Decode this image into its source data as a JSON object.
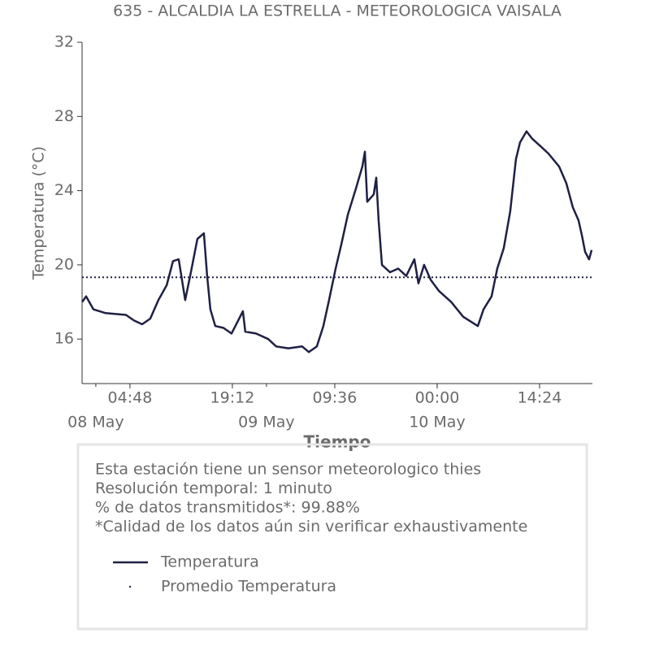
{
  "chart_data": {
    "type": "line",
    "title": "635 - ALCALDIA LA ESTRELLA - METEOROLOGICA VAISALA",
    "xlabel": "Tiempo",
    "ylabel": "Temperatura (°C)",
    "x": [
      "07 May 22:05",
      "07 May 22:38",
      "07 May 23:40",
      "08 May 01:22",
      "08 May 04:14",
      "08 May 05:22",
      "08 May 06:31",
      "08 May 07:39",
      "08 May 08:48",
      "08 May 09:58",
      "08 May 10:51",
      "08 May 11:39",
      "08 May 12:34",
      "08 May 13:22",
      "08 May 14:17",
      "08 May 15:12",
      "08 May 15:39",
      "08 May 16:07",
      "08 May 16:48",
      "08 May 17:57",
      "08 May 19:05",
      "08 May 20:41",
      "08 May 21:01",
      "08 May 22:31",
      "09 May 00:14",
      "09 May 01:22",
      "09 May 03:05",
      "09 May 05:01",
      "09 May 05:57",
      "09 May 07:05",
      "09 May 08:00",
      "09 May 08:48",
      "09 May 09:43",
      "09 May 10:31",
      "09 May 11:26",
      "09 May 12:34",
      "09 May 13:29",
      "09 May 13:50",
      "09 May 14:10",
      "09 May 15:05",
      "09 May 15:26",
      "09 May 15:46",
      "09 May 16:14",
      "09 May 17:22",
      "09 May 18:31",
      "09 May 19:39",
      "09 May 20:48",
      "09 May 21:22",
      "09 May 22:10",
      "09 May 23:05",
      "10 May 00:14",
      "10 May 01:58",
      "10 May 03:40",
      "10 May 05:43",
      "10 May 06:31",
      "10 May 07:39",
      "10 May 08:27",
      "10 May 09:22",
      "10 May 10:17",
      "10 May 11:05",
      "10 May 11:39",
      "10 May 12:34",
      "10 May 13:22",
      "10 May 14:31",
      "10 May 15:39",
      "10 May 17:09",
      "10 May 18:10",
      "10 May 19:05",
      "10 May 19:53",
      "10 May 20:21",
      "10 May 20:48",
      "10 May 21:22",
      "10 May 21:43"
    ],
    "series": [
      {
        "name": "Temperatura",
        "color": "#1f2044",
        "values": [
          18.0,
          18.3,
          17.6,
          17.4,
          17.3,
          17.0,
          16.8,
          17.1,
          18.1,
          18.9,
          20.2,
          20.3,
          18.1,
          19.6,
          21.4,
          21.7,
          19.4,
          17.6,
          16.7,
          16.6,
          16.3,
          17.5,
          16.4,
          16.3,
          16.0,
          15.6,
          15.5,
          15.6,
          15.3,
          15.6,
          16.7,
          18.1,
          19.8,
          21.1,
          22.7,
          24.1,
          25.3,
          26.1,
          23.4,
          23.8,
          24.7,
          22.4,
          20.0,
          19.6,
          19.8,
          19.4,
          20.3,
          19.0,
          20.0,
          19.2,
          18.6,
          18.0,
          17.2,
          16.7,
          17.6,
          18.3,
          19.8,
          20.9,
          22.9,
          25.7,
          26.6,
          27.2,
          26.8,
          26.4,
          26.0,
          25.3,
          24.4,
          23.1,
          22.4,
          21.6,
          20.7,
          20.3,
          20.8
        ]
      }
    ],
    "mean_line": {
      "name": "Promedio Temperatura",
      "value": 19.33,
      "color": "#1f2044"
    },
    "xlim": [
      "07 May 22:04",
      "10 May 21:50"
    ],
    "xticks": [
      {
        "value": "08 May 04:48",
        "label": "04:48"
      },
      {
        "value": "08 May 19:12",
        "label": "19:12"
      },
      {
        "value": "09 May 09:36",
        "label": "09:36"
      },
      {
        "value": "10 May 00:00",
        "label": "00:00"
      },
      {
        "value": "10 May 14:24",
        "label": "14:24"
      }
    ],
    "xticks_minor": [
      {
        "value": "08 May 00:00",
        "label": "08 May"
      },
      {
        "value": "09 May 00:00",
        "label": "09 May"
      },
      {
        "value": "10 May 00:00",
        "label": "10 May"
      }
    ],
    "ylim": [
      13.6,
      32
    ],
    "yticks": [
      16,
      20,
      24,
      28,
      32
    ],
    "notes": [
      "Esta estación tiene un sensor meteorologico thies",
      "Resolución temporal: 1 minuto",
      "% de datos transmitidos*: 99.88%",
      "*Calidad de los datos aún sin verificar exhaustivamente"
    ]
  }
}
